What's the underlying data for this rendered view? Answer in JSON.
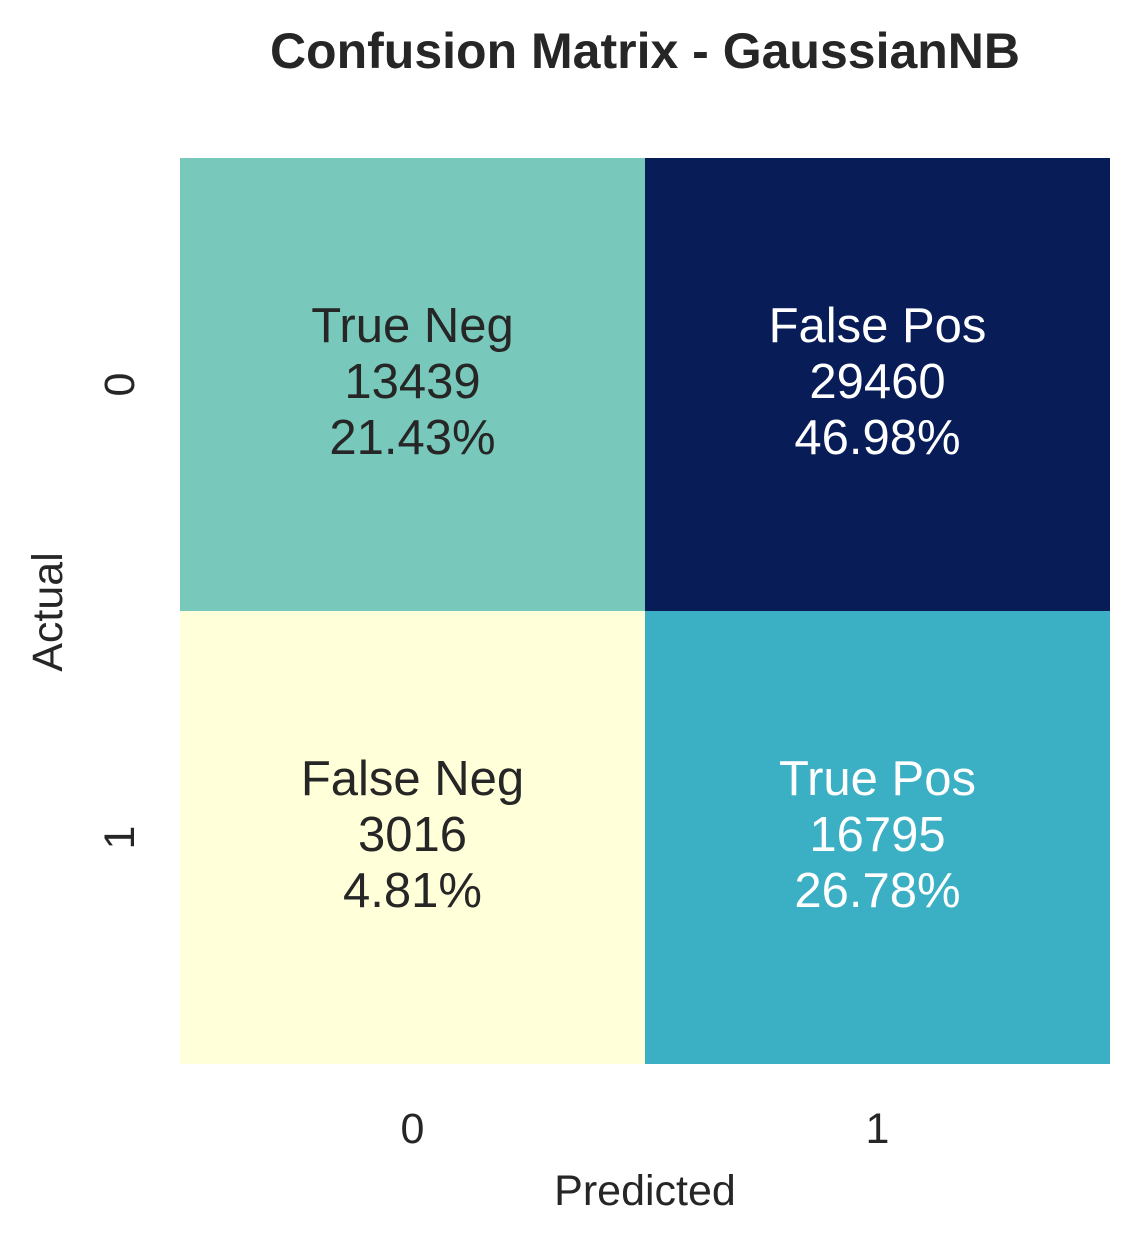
{
  "chart_data": {
    "type": "heatmap",
    "title": "Confusion Matrix - GaussianNB",
    "xlabel": "Predicted",
    "ylabel": "Actual",
    "x_ticks": [
      "0",
      "1"
    ],
    "y_ticks": [
      "0",
      "1"
    ],
    "colormap": "YlGnBu",
    "colorbar": false,
    "cells": [
      {
        "row": 0,
        "col": 0,
        "label": "True Neg",
        "count": "13439",
        "percent": "21.43%",
        "value": 13439,
        "color": "#78c9bb",
        "text_color": "#262626"
      },
      {
        "row": 0,
        "col": 1,
        "label": "False Pos",
        "count": "29460",
        "percent": "46.98%",
        "value": 29460,
        "color": "#081d58",
        "text_color": "#ffffff"
      },
      {
        "row": 1,
        "col": 0,
        "label": "False Neg",
        "count": "3016",
        "percent": "4.81%",
        "value": 3016,
        "color": "#ffffd9",
        "text_color": "#262626"
      },
      {
        "row": 1,
        "col": 1,
        "label": "True Pos",
        "count": "16795",
        "percent": "26.78%",
        "value": 16795,
        "color": "#3bafc3",
        "text_color": "#ffffff"
      }
    ]
  }
}
